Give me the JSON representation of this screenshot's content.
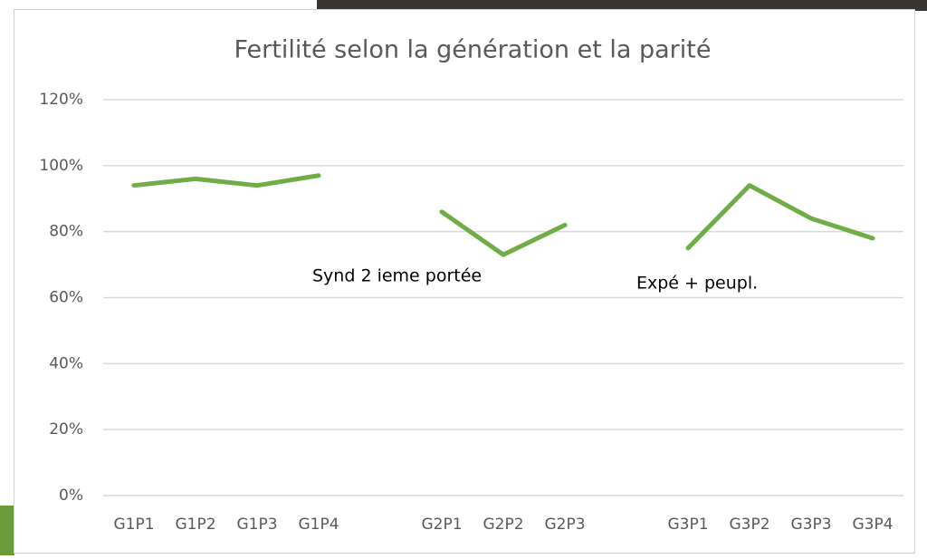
{
  "chart_data": {
    "type": "line",
    "title": "Fertilité selon la génération et la parité",
    "categories": [
      "G1P1",
      "G1P2",
      "G1P3",
      "G1P4",
      null,
      "G2P1",
      "G2P2",
      "G2P3",
      null,
      "G3P1",
      "G3P2",
      "G3P3",
      "G3P4"
    ],
    "series": [
      {
        "color": "#70ad47",
        "values": [
          94,
          96,
          94,
          97,
          null,
          86,
          73,
          82,
          null,
          75,
          94,
          84,
          78
        ]
      }
    ],
    "ylim": [
      0,
      120
    ],
    "yticks": [
      {
        "value": 0,
        "label": "0%"
      },
      {
        "value": 20,
        "label": "20%"
      },
      {
        "value": 40,
        "label": "40%"
      },
      {
        "value": 60,
        "label": "60%"
      },
      {
        "value": 80,
        "label": "80%"
      },
      {
        "value": 100,
        "label": "100%"
      },
      {
        "value": 120,
        "label": "120%"
      }
    ],
    "grid": true,
    "annotations": [
      "Synd 2 ieme portée",
      "Expé + peupl."
    ]
  }
}
